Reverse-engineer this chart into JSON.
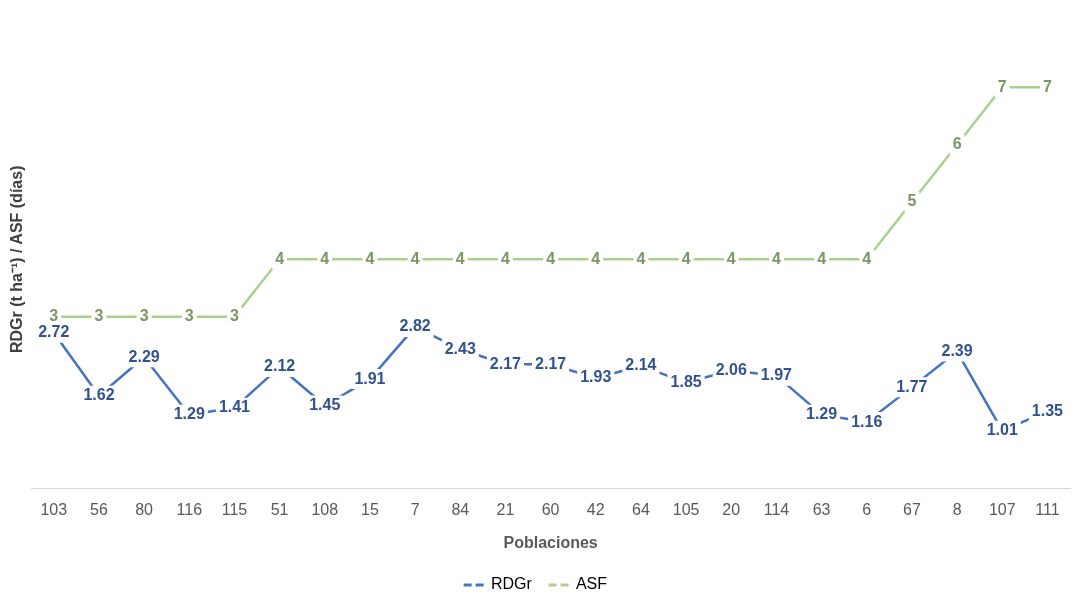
{
  "chart_data": {
    "type": "line",
    "xlabel": "Poblaciones",
    "ylabel": "RDGr (t ha⁻¹) / ASF (días)",
    "categories": [
      "103",
      "56",
      "80",
      "116",
      "115",
      "51",
      "108",
      "15",
      "7",
      "84",
      "21",
      "60",
      "42",
      "64",
      "105",
      "20",
      "114",
      "63",
      "6",
      "67",
      "8",
      "107",
      "111"
    ],
    "series": [
      {
        "name": "RDGr",
        "color": "#4472c4",
        "values": [
          2.72,
          1.62,
          2.29,
          1.29,
          1.41,
          2.12,
          1.45,
          1.91,
          2.82,
          2.43,
          2.17,
          2.17,
          1.93,
          2.14,
          1.85,
          2.06,
          1.97,
          1.29,
          1.16,
          1.77,
          2.39,
          1.01,
          1.35
        ]
      },
      {
        "name": "ASF",
        "color": "#a9d18e",
        "values": [
          3,
          3,
          3,
          3,
          3,
          4,
          4,
          4,
          4,
          4,
          4,
          4,
          4,
          4,
          4,
          4,
          4,
          4,
          4,
          5,
          6,
          7,
          7
        ]
      }
    ],
    "tick_labels": "x",
    "data_labels": true,
    "legend": "bottom",
    "line_style": "solid",
    "grid": false
  }
}
